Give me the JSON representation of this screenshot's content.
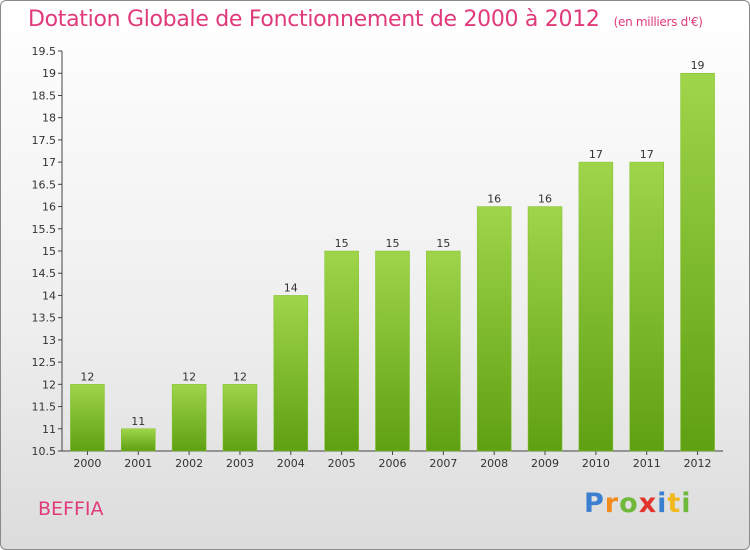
{
  "header": {
    "title": "Dotation Globale de Fonctionnement de 2000 à 2012",
    "subtitle": "(en milliers d'€)"
  },
  "commune": "BEFFIA",
  "logo": {
    "letters": [
      "P",
      "r",
      "o",
      "x",
      "i",
      "t",
      "i"
    ],
    "colors": [
      "#3a7fd0",
      "#f28a1e",
      "#6fb83a",
      "#e2342c",
      "#3a7fd0",
      "#f2b91e",
      "#6fb83a"
    ]
  },
  "chart_data": {
    "type": "bar",
    "categories": [
      "2000",
      "2001",
      "2002",
      "2003",
      "2004",
      "2005",
      "2006",
      "2007",
      "2008",
      "2009",
      "2010",
      "2011",
      "2012"
    ],
    "values": [
      12,
      11,
      12,
      12,
      14,
      15,
      15,
      15,
      16,
      16,
      17,
      17,
      19
    ],
    "data_labels": [
      "12",
      "11",
      "12",
      "12",
      "14",
      "15",
      "15",
      "15",
      "16",
      "16",
      "17",
      "17",
      "19"
    ],
    "title": "Dotation Globale de Fonctionnement de 2000 à 2012",
    "subtitle": "(en milliers d'€)",
    "xlabel": "",
    "ylabel": "",
    "ylim": [
      10.5,
      19.5
    ],
    "yticks": [
      "10.5",
      "11",
      "11.5",
      "12",
      "12.5",
      "13",
      "13.5",
      "14",
      "14.5",
      "15",
      "15.5",
      "16",
      "16.5",
      "17",
      "17.5",
      "18",
      "18.5",
      "19",
      "19.5"
    ],
    "grid": false,
    "bar_color_top": "#9fd54a",
    "bar_color_bottom": "#5fa012"
  }
}
